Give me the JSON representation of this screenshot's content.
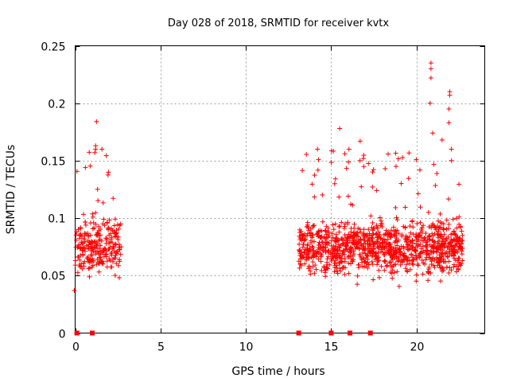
{
  "chart_data": {
    "type": "scatter",
    "title": "Day 028 of 2018, SRMTID for receiver kvtx",
    "xlabel": "GPS time / hours",
    "ylabel": "SRMTID / TECUs",
    "xlim": [
      0,
      24
    ],
    "ylim": [
      0,
      0.25
    ],
    "xticks": [
      0,
      5,
      10,
      15,
      20
    ],
    "xtick_labels": [
      "0",
      "5",
      "10",
      "15",
      "20"
    ],
    "yticks": [
      0,
      0.05,
      0.1,
      0.15,
      0.2,
      0.25
    ],
    "ytick_labels": [
      "0",
      "0.05",
      "0.1",
      "0.15",
      "0.2",
      "0.25"
    ],
    "grid": true,
    "marker": "+",
    "color": "#ff0000",
    "zero_markers_x": [
      0.1,
      1.0,
      13.1,
      15.0,
      16.1,
      17.3
    ],
    "clusters": [
      {
        "x_range": [
          0.0,
          2.7
        ],
        "y_mean": 0.075,
        "y_spread": 0.03,
        "n": 260
      },
      {
        "x_range": [
          13.1,
          22.7
        ],
        "y_mean": 0.075,
        "y_spread": 0.03,
        "n": 1100
      }
    ],
    "highlights": [
      {
        "x": 1.25,
        "y": 0.184
      },
      {
        "x": 1.2,
        "y": 0.163
      },
      {
        "x": 1.15,
        "y": 0.157
      },
      {
        "x": 0.6,
        "y": 0.144
      },
      {
        "x": 1.95,
        "y": 0.14
      },
      {
        "x": 15.5,
        "y": 0.178
      },
      {
        "x": 16.7,
        "y": 0.167
      },
      {
        "x": 18.8,
        "y": 0.145
      },
      {
        "x": 20.85,
        "y": 0.235
      },
      {
        "x": 20.85,
        "y": 0.23
      },
      {
        "x": 20.85,
        "y": 0.222
      },
      {
        "x": 21.95,
        "y": 0.21
      },
      {
        "x": 21.95,
        "y": 0.207
      },
      {
        "x": 20.8,
        "y": 0.2
      },
      {
        "x": 21.9,
        "y": 0.195
      },
      {
        "x": 21.9,
        "y": 0.183
      },
      {
        "x": 20.95,
        "y": 0.174
      },
      {
        "x": 21.5,
        "y": 0.168
      },
      {
        "x": -0.05,
        "y": 0.037
      }
    ]
  }
}
